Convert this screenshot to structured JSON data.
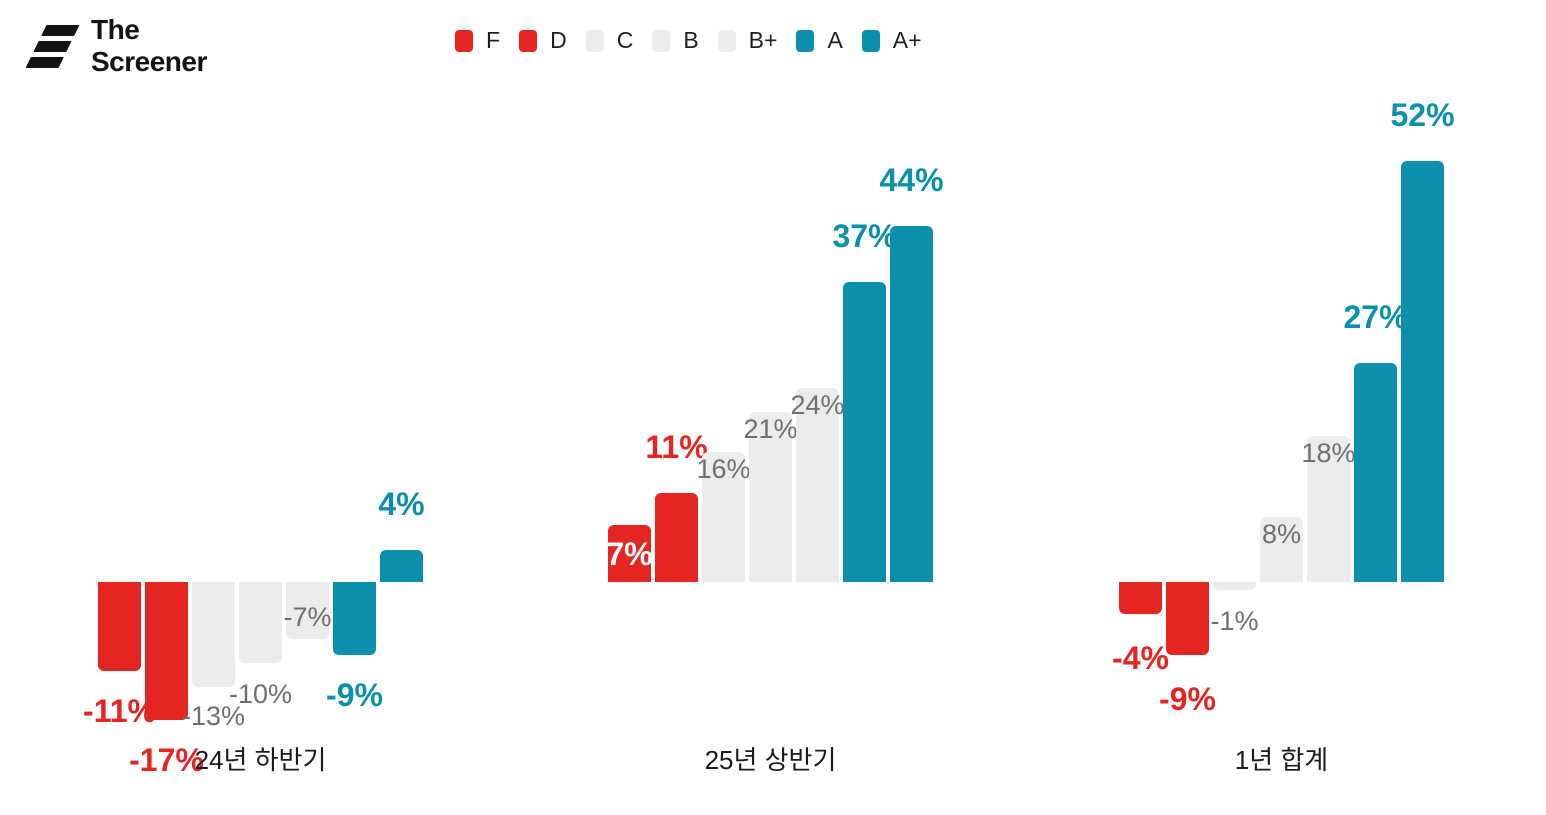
{
  "brand": {
    "line1": "The",
    "line2": "Screener"
  },
  "colors": {
    "red": "#e42522",
    "gray_bar": "#ececec",
    "teal": "#0a90ac",
    "muted_text": "#6f6f6f",
    "dark_text": "#1b1b1b",
    "white": "#ffffff"
  },
  "legend": [
    {
      "label": "F",
      "color": "#e42522"
    },
    {
      "label": "D",
      "color": "#e42522"
    },
    {
      "label": "C",
      "color": "#ececec"
    },
    {
      "label": "B",
      "color": "#ececec"
    },
    {
      "label": "B+",
      "color": "#ececec"
    },
    {
      "label": "A",
      "color": "#0a90ac"
    },
    {
      "label": "A+",
      "color": "#0a90ac"
    }
  ],
  "chart_data": {
    "type": "bar",
    "unit": "%",
    "grid": false,
    "legend_position": "top",
    "categories": [
      "F",
      "D",
      "C",
      "B",
      "B+",
      "A",
      "A+"
    ],
    "category_colors": [
      "#e42522",
      "#e42522",
      "#ececec",
      "#ececec",
      "#ececec",
      "#0a90ac",
      "#0a90ac"
    ],
    "groups": [
      {
        "label": "24년 하반기",
        "values": [
          -11,
          -17,
          -13,
          -10,
          -7,
          -9,
          4
        ],
        "value_labels": [
          "-11%",
          "-17%",
          "-13%",
          "-10%",
          "-7%",
          "-9%",
          "4%"
        ],
        "label_styles": [
          "strong",
          "strong",
          "muted",
          "muted",
          "muted",
          "strong",
          "strong"
        ],
        "label_placements": [
          "below",
          "below",
          "below",
          "below",
          "in-bottom",
          "below",
          "above"
        ],
        "label_dy": [
          0,
          0,
          -8,
          -6,
          0,
          0,
          0
        ]
      },
      {
        "label": "25년 상반기",
        "values": [
          7,
          11,
          16,
          21,
          24,
          37,
          44
        ],
        "value_labels": [
          "7%",
          "11%",
          "16%",
          "21%",
          "24%",
          "37%",
          "44%"
        ],
        "label_styles": [
          "inverse",
          "strong",
          "muted",
          "muted",
          "muted",
          "strong-outlined",
          "strong"
        ],
        "label_placements": [
          "in-center",
          "above",
          "in-top",
          "in-top",
          "in-top",
          "above",
          "above"
        ],
        "label_dy": [
          0,
          0,
          0,
          0,
          0,
          0,
          0
        ]
      },
      {
        "label": "1년 합계",
        "values": [
          -4,
          -9,
          -1,
          8,
          18,
          27,
          52
        ],
        "value_labels": [
          "-4%",
          "-9%",
          "-1%",
          "8%",
          "18%",
          "27%",
          "52%"
        ],
        "label_styles": [
          "strong",
          "strong",
          "muted",
          "muted",
          "muted",
          "strong-outlined",
          "strong"
        ],
        "label_placements": [
          "below",
          "below",
          "below",
          "in-top",
          "in-top",
          "above",
          "above"
        ],
        "label_dy": [
          4,
          4,
          -6,
          0,
          0,
          0,
          0
        ]
      }
    ]
  }
}
